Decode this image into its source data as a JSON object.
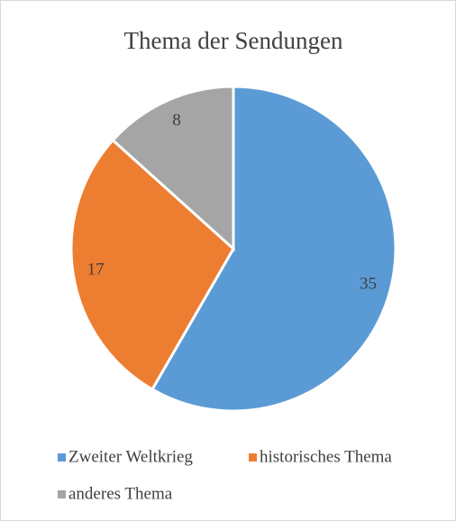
{
  "chart_data": {
    "type": "pie",
    "title": "Thema der Sendungen",
    "categories": [
      "Zweiter Weltkrieg",
      "historisches Thema",
      "anderes Thema"
    ],
    "values": [
      35,
      17,
      8
    ],
    "colors": [
      "#5b9bd5",
      "#ed7d31",
      "#a5a5a5"
    ],
    "legend": "bottom"
  }
}
